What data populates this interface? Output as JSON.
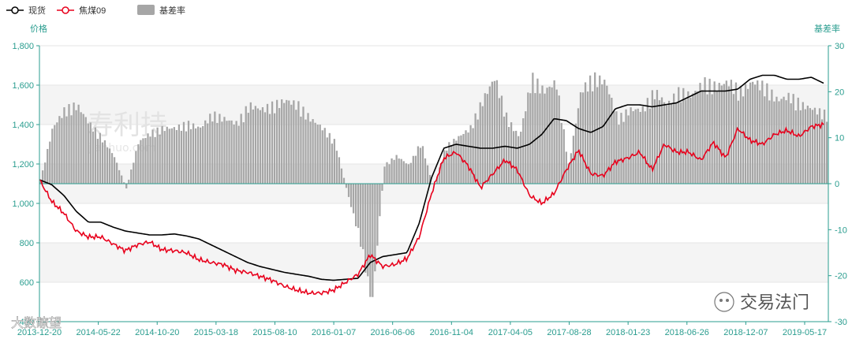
{
  "chart_data": {
    "type": "line",
    "legend": {
      "placement": "top-left",
      "items": [
        {
          "label": "现货",
          "color": "#000000",
          "kind": "line"
        },
        {
          "label": "焦煤09",
          "color": "#e8001c",
          "kind": "line"
        },
        {
          "label": "基差率",
          "color": "#a6a6a6",
          "kind": "bar"
        }
      ]
    },
    "y_left": {
      "label": "价格",
      "min": 400,
      "max": 1800,
      "ticks": [
        "400",
        "600",
        "800",
        "1,000",
        "1,200",
        "1,400",
        "1,600",
        "1,800"
      ]
    },
    "y_right": {
      "label": "基差率",
      "min": -30,
      "max": 30,
      "ticks": [
        "-30",
        "-20",
        "-10",
        "0",
        "10",
        "20",
        "30"
      ]
    },
    "x_labels": [
      "2013-12-20",
      "2014-05-22",
      "2014-10-20",
      "2015-03-18",
      "2015-08-10",
      "2016-01-07",
      "2016-06-06",
      "2016-11-04",
      "2017-04-05",
      "2017-08-28",
      "2018-01-23",
      "2018-06-26",
      "2018-12-07",
      "2019-05-17"
    ],
    "series": [
      {
        "name": "现货",
        "color": "#000000",
        "values": [
          1120,
          1095,
          1040,
          960,
          905,
          905,
          880,
          860,
          850,
          840,
          840,
          845,
          835,
          820,
          790,
          760,
          730,
          700,
          680,
          665,
          650,
          640,
          630,
          615,
          610,
          615,
          620,
          700,
          730,
          740,
          750,
          900,
          1130,
          1280,
          1300,
          1290,
          1280,
          1280,
          1290,
          1280,
          1300,
          1350,
          1430,
          1420,
          1380,
          1360,
          1390,
          1480,
          1500,
          1500,
          1490,
          1500,
          1510,
          1540,
          1570,
          1570,
          1570,
          1580,
          1630,
          1650,
          1650,
          1630,
          1630,
          1640,
          1610
        ]
      },
      {
        "name": "焦煤09",
        "color": "#e8001c",
        "values": [
          1120,
          1010,
          950,
          860,
          830,
          830,
          795,
          760,
          790,
          805,
          765,
          760,
          750,
          715,
          700,
          690,
          660,
          650,
          630,
          610,
          580,
          560,
          545,
          545,
          560,
          600,
          640,
          740,
          680,
          690,
          720,
          830,
          1050,
          1230,
          1260,
          1190,
          1080,
          1150,
          1220,
          1170,
          1040,
          1000,
          1050,
          1170,
          1270,
          1150,
          1140,
          1210,
          1230,
          1260,
          1170,
          1300,
          1260,
          1260,
          1220,
          1310,
          1230,
          1380,
          1320,
          1300,
          1350,
          1370,
          1340,
          1390,
          1400
        ]
      },
      {
        "name": "基差率",
        "color": "#a6a6a6",
        "values": [
          0.5,
          12,
          16,
          17,
          13,
          10,
          6,
          -1,
          9,
          11,
          12,
          12,
          13,
          12,
          15,
          14,
          13,
          17,
          16,
          17,
          18,
          17,
          14,
          12,
          9,
          -2,
          -12,
          -26,
          4,
          6,
          4,
          9,
          -1,
          8,
          10,
          12,
          18,
          23,
          14,
          10,
          23,
          20,
          22,
          4,
          20,
          23,
          22,
          14,
          16,
          16,
          20,
          17,
          20,
          19,
          22,
          21,
          22,
          20,
          22,
          21,
          18,
          19,
          17,
          16,
          15
        ]
      }
    ]
  },
  "watermarks": {
    "center_title": "寿利持",
    "center_sub": "jianhuo.com",
    "bottom_left": "大数瞭望",
    "bottom_right": "交易法门"
  }
}
